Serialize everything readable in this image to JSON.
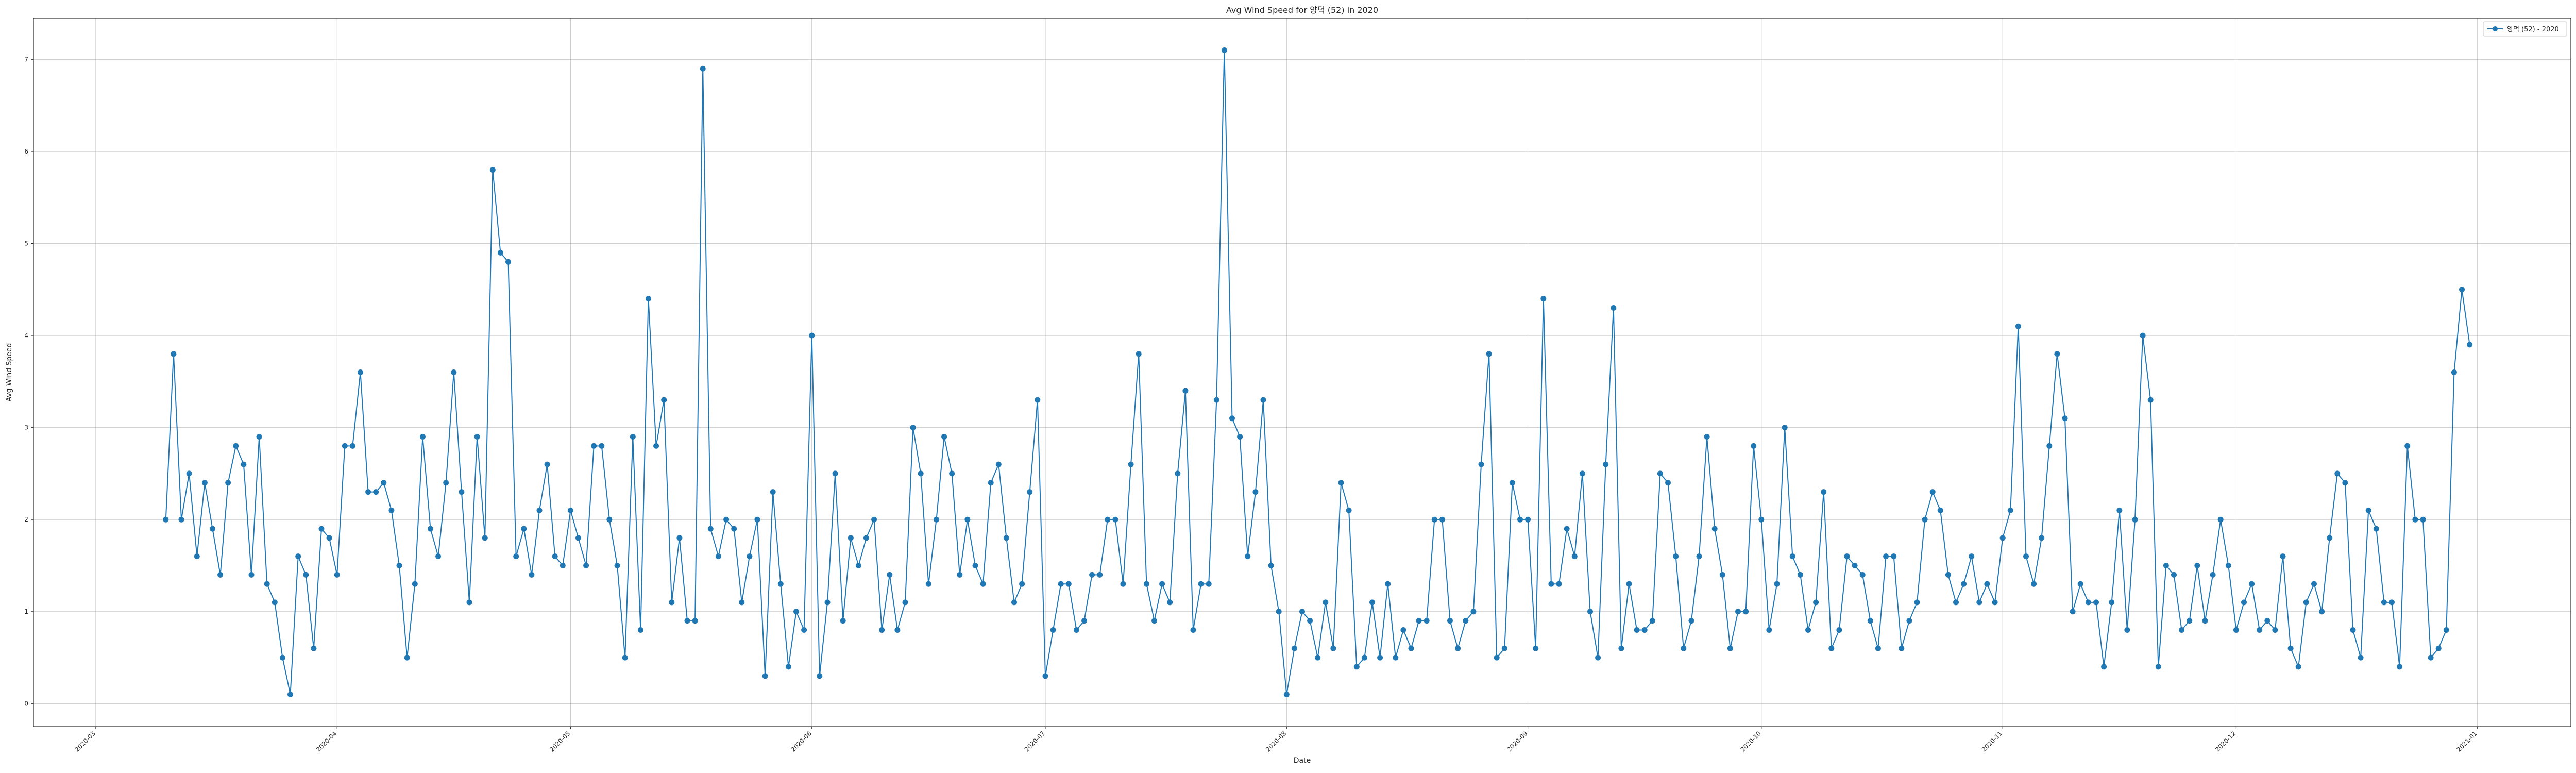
{
  "chart_data": {
    "type": "line",
    "title": "Avg Wind Speed for 양덕 (52) in 2020",
    "xlabel": "Date",
    "ylabel": "Avg Wind Speed",
    "x_ticks": [
      "2020-03",
      "2020-04",
      "2020-05",
      "2020-06",
      "2020-07",
      "2020-08",
      "2020-09",
      "2020-10",
      "2020-11",
      "2020-12",
      "2021-01"
    ],
    "x_tick_dates": [
      "2020-03-01",
      "2020-04-01",
      "2020-05-01",
      "2020-06-01",
      "2020-07-01",
      "2020-08-01",
      "2020-09-01",
      "2020-10-01",
      "2020-11-01",
      "2020-12-01",
      "2021-01-01"
    ],
    "y_ticks": [
      0,
      1,
      2,
      3,
      4,
      5,
      6,
      7
    ],
    "xlim": [
      "2020-02-22",
      "2021-01-13"
    ],
    "ylim": [
      -0.25,
      7.45
    ],
    "grid": true,
    "legend_position": "top-right",
    "color": "#1f77b4",
    "series": [
      {
        "name": "양덕 (52) - 2020",
        "x": [
          "2020-03-10",
          "2020-03-11",
          "2020-03-12",
          "2020-03-13",
          "2020-03-14",
          "2020-03-15",
          "2020-03-16",
          "2020-03-17",
          "2020-03-18",
          "2020-03-19",
          "2020-03-20",
          "2020-03-21",
          "2020-03-22",
          "2020-03-23",
          "2020-03-24",
          "2020-03-25",
          "2020-03-26",
          "2020-03-27",
          "2020-03-28",
          "2020-03-29",
          "2020-03-30",
          "2020-03-31",
          "2020-04-01",
          "2020-04-02",
          "2020-04-03",
          "2020-04-04",
          "2020-04-05",
          "2020-04-06",
          "2020-04-07",
          "2020-04-08",
          "2020-04-09",
          "2020-04-10",
          "2020-04-11",
          "2020-04-12",
          "2020-04-13",
          "2020-04-14",
          "2020-04-15",
          "2020-04-16",
          "2020-04-17",
          "2020-04-18",
          "2020-04-19",
          "2020-04-20",
          "2020-04-21",
          "2020-04-22",
          "2020-04-23",
          "2020-04-24",
          "2020-04-25",
          "2020-04-26",
          "2020-04-27",
          "2020-04-28",
          "2020-04-29",
          "2020-04-30",
          "2020-05-01",
          "2020-05-02",
          "2020-05-03",
          "2020-05-04",
          "2020-05-05",
          "2020-05-06",
          "2020-05-07",
          "2020-05-08",
          "2020-05-09",
          "2020-05-10",
          "2020-05-11",
          "2020-05-12",
          "2020-05-13",
          "2020-05-14",
          "2020-05-15",
          "2020-05-16",
          "2020-05-17",
          "2020-05-18",
          "2020-05-19",
          "2020-05-20",
          "2020-05-21",
          "2020-05-22",
          "2020-05-23",
          "2020-05-24",
          "2020-05-25",
          "2020-05-26",
          "2020-05-27",
          "2020-05-28",
          "2020-05-29",
          "2020-05-30",
          "2020-05-31",
          "2020-06-01",
          "2020-06-02",
          "2020-06-03",
          "2020-06-04",
          "2020-06-05",
          "2020-06-06",
          "2020-06-07",
          "2020-06-08",
          "2020-06-09",
          "2020-06-10",
          "2020-06-11",
          "2020-06-12",
          "2020-06-13",
          "2020-06-14",
          "2020-06-15",
          "2020-06-16",
          "2020-06-17",
          "2020-06-18",
          "2020-06-19",
          "2020-06-20",
          "2020-06-21",
          "2020-06-22",
          "2020-06-23",
          "2020-06-24",
          "2020-06-25",
          "2020-06-26",
          "2020-06-27",
          "2020-06-28",
          "2020-06-29",
          "2020-06-30",
          "2020-07-01",
          "2020-07-02",
          "2020-07-03",
          "2020-07-04",
          "2020-07-05",
          "2020-07-06",
          "2020-07-07",
          "2020-07-08",
          "2020-07-09",
          "2020-07-10",
          "2020-07-11",
          "2020-07-12",
          "2020-07-13",
          "2020-07-14",
          "2020-07-15",
          "2020-07-16",
          "2020-07-17",
          "2020-07-18",
          "2020-07-19",
          "2020-07-20",
          "2020-07-21",
          "2020-07-22",
          "2020-07-23",
          "2020-07-24",
          "2020-07-25",
          "2020-07-26",
          "2020-07-27",
          "2020-07-28",
          "2020-07-29",
          "2020-07-30",
          "2020-07-31",
          "2020-08-01",
          "2020-08-02",
          "2020-08-03",
          "2020-08-04",
          "2020-08-05",
          "2020-08-06",
          "2020-08-07",
          "2020-08-08",
          "2020-08-09",
          "2020-08-10",
          "2020-08-11",
          "2020-08-12",
          "2020-08-13",
          "2020-08-14",
          "2020-08-15",
          "2020-08-16",
          "2020-08-17",
          "2020-08-18",
          "2020-08-19",
          "2020-08-20",
          "2020-08-21",
          "2020-08-22",
          "2020-08-23",
          "2020-08-24",
          "2020-08-25",
          "2020-08-26",
          "2020-08-27",
          "2020-08-28",
          "2020-08-29",
          "2020-08-30",
          "2020-08-31",
          "2020-09-01",
          "2020-09-02",
          "2020-09-03",
          "2020-09-04",
          "2020-09-05",
          "2020-09-06",
          "2020-09-07",
          "2020-09-08",
          "2020-09-09",
          "2020-09-10",
          "2020-09-11",
          "2020-09-12",
          "2020-09-13",
          "2020-09-14",
          "2020-09-15",
          "2020-09-16",
          "2020-09-17",
          "2020-09-18",
          "2020-09-19",
          "2020-09-20",
          "2020-09-21",
          "2020-09-22",
          "2020-09-23",
          "2020-09-24",
          "2020-09-25",
          "2020-09-26",
          "2020-09-27",
          "2020-09-28",
          "2020-09-29",
          "2020-09-30",
          "2020-10-01",
          "2020-10-02",
          "2020-10-03",
          "2020-10-04",
          "2020-10-05",
          "2020-10-06",
          "2020-10-07",
          "2020-10-08",
          "2020-10-09",
          "2020-10-10",
          "2020-10-11",
          "2020-10-12",
          "2020-10-13",
          "2020-10-14",
          "2020-10-15",
          "2020-10-16",
          "2020-10-17",
          "2020-10-18",
          "2020-10-19",
          "2020-10-20",
          "2020-10-21",
          "2020-10-22",
          "2020-10-23",
          "2020-10-24",
          "2020-10-25",
          "2020-10-26",
          "2020-10-27",
          "2020-10-28",
          "2020-10-29",
          "2020-10-30",
          "2020-10-31",
          "2020-11-01",
          "2020-11-02",
          "2020-11-03",
          "2020-11-04",
          "2020-11-05",
          "2020-11-06",
          "2020-11-07",
          "2020-11-08",
          "2020-11-09",
          "2020-11-10",
          "2020-11-11",
          "2020-11-12",
          "2020-11-13",
          "2020-11-14",
          "2020-11-15",
          "2020-11-16",
          "2020-11-17",
          "2020-11-18",
          "2020-11-19",
          "2020-11-20",
          "2020-11-21",
          "2020-11-22",
          "2020-11-23",
          "2020-11-24",
          "2020-11-25",
          "2020-11-26",
          "2020-11-27",
          "2020-11-28",
          "2020-11-29",
          "2020-11-30",
          "2020-12-01",
          "2020-12-02",
          "2020-12-03",
          "2020-12-04",
          "2020-12-05",
          "2020-12-06",
          "2020-12-07",
          "2020-12-08",
          "2020-12-09",
          "2020-12-10",
          "2020-12-11",
          "2020-12-12",
          "2020-12-13",
          "2020-12-14",
          "2020-12-15",
          "2020-12-16",
          "2020-12-17",
          "2020-12-18",
          "2020-12-19",
          "2020-12-20",
          "2020-12-21",
          "2020-12-22",
          "2020-12-23",
          "2020-12-24",
          "2020-12-25",
          "2020-12-26",
          "2020-12-27",
          "2020-12-28",
          "2020-12-29",
          "2020-12-30",
          "2020-12-31"
        ],
        "y": [
          2.0,
          3.8,
          2.0,
          2.5,
          1.6,
          2.4,
          1.9,
          1.4,
          2.4,
          2.8,
          2.6,
          1.4,
          2.9,
          1.3,
          1.1,
          0.5,
          0.1,
          1.6,
          1.4,
          0.6,
          1.9,
          1.8,
          1.4,
          2.8,
          2.8,
          3.6,
          2.3,
          2.3,
          2.4,
          2.1,
          1.5,
          0.5,
          1.3,
          2.9,
          1.9,
          1.6,
          2.4,
          3.6,
          2.3,
          1.1,
          2.9,
          1.8,
          5.8,
          4.9,
          4.8,
          1.6,
          1.9,
          1.4,
          2.1,
          2.6,
          1.6,
          1.5,
          2.1,
          1.8,
          1.5,
          2.8,
          2.8,
          2.0,
          1.5,
          0.5,
          2.9,
          0.8,
          4.4,
          2.8,
          3.3,
          1.1,
          1.8,
          0.9,
          0.9,
          6.9,
          1.9,
          1.6,
          2.0,
          1.9,
          1.1,
          1.6,
          2.0,
          0.3,
          2.3,
          1.3,
          0.4,
          1.0,
          0.8,
          4.0,
          0.3,
          1.1,
          2.5,
          0.9,
          1.8,
          1.5,
          1.8,
          2.0,
          0.8,
          1.4,
          0.8,
          1.1,
          3.0,
          2.5,
          1.3,
          2.0,
          2.9,
          2.5,
          1.4,
          2.0,
          1.5,
          1.3,
          2.4,
          2.6,
          1.8,
          1.1,
          1.3,
          2.3,
          3.3,
          0.3,
          0.8,
          1.3,
          1.3,
          0.8,
          0.9,
          1.4,
          1.4,
          2.0,
          2.0,
          1.3,
          2.6,
          3.8,
          1.3,
          0.9,
          1.3,
          1.1,
          2.5,
          3.4,
          0.8,
          1.3,
          1.3,
          3.3,
          7.1,
          3.1,
          2.9,
          1.6,
          2.3,
          3.3,
          1.5,
          1.0,
          0.1,
          0.6,
          1.0,
          0.9,
          0.5,
          1.1,
          0.6,
          2.4,
          2.1,
          0.4,
          0.5,
          1.1,
          0.5,
          1.3,
          0.5,
          0.8,
          0.6,
          0.9,
          0.9,
          2.0,
          2.0,
          0.9,
          0.6,
          0.9,
          1.0,
          2.6,
          3.8,
          0.5,
          0.6,
          2.4,
          2.0,
          2.0,
          0.6,
          4.4,
          1.3,
          1.3,
          1.9,
          1.6,
          2.5,
          1.0,
          0.5,
          2.6,
          4.3,
          0.6,
          1.3,
          0.8,
          0.8,
          0.9,
          2.5,
          2.4,
          1.6,
          0.6,
          0.9,
          1.6,
          2.9,
          1.9,
          1.4,
          0.6,
          1.0,
          1.0,
          2.8,
          2.0,
          0.8,
          1.3,
          3.0,
          1.6,
          1.4,
          0.8,
          1.1,
          2.3,
          0.6,
          0.8,
          1.6,
          1.5,
          1.4,
          0.9,
          0.6,
          1.6,
          1.6,
          0.6,
          0.9,
          1.1,
          2.0,
          2.3,
          2.1,
          1.4,
          1.1,
          1.3,
          1.6,
          1.1,
          1.3,
          1.1,
          1.8,
          2.1,
          4.1,
          1.6,
          1.3,
          1.8,
          2.8,
          3.8,
          3.1,
          1.0,
          1.3,
          1.1,
          1.1,
          0.4,
          1.1,
          2.1,
          0.8,
          2.0,
          4.0,
          3.3,
          0.4,
          1.5,
          1.4,
          0.8,
          0.9,
          1.5,
          0.9,
          1.4,
          2.0,
          1.5,
          0.8,
          1.1,
          1.3,
          0.8,
          0.9,
          0.8,
          1.6,
          0.6,
          0.4,
          1.1,
          1.3,
          1.0,
          1.8,
          2.5,
          2.4,
          0.8,
          0.5,
          2.1,
          1.9,
          1.1,
          1.1,
          0.4,
          2.8,
          2.0,
          2.0,
          0.5,
          0.6,
          0.8,
          3.6,
          4.5,
          3.9
        ]
      }
    ]
  }
}
